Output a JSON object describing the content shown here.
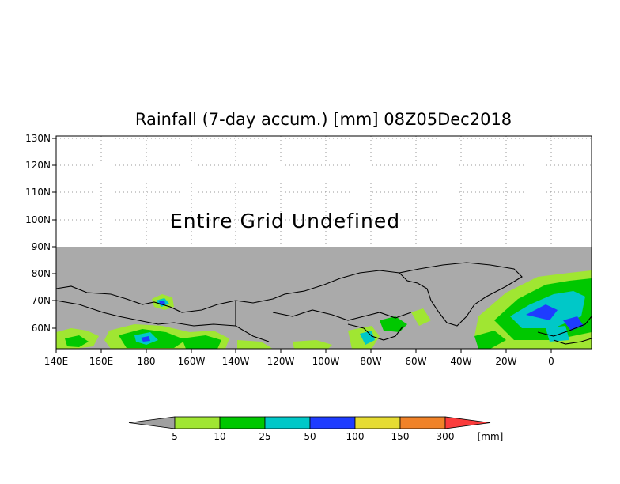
{
  "title": "Rainfall (7-day accum.) [mm] 08Z05Dec2018",
  "overlay_text": "Entire Grid Undefined",
  "lat_ticks": [
    "130N",
    "120N",
    "110N",
    "100N",
    "90N",
    "80N",
    "70N",
    "60N"
  ],
  "lon_ticks": [
    "140E",
    "160E",
    "180",
    "160W",
    "140W",
    "120W",
    "100W",
    "80W",
    "60W",
    "40W",
    "20W",
    "0"
  ],
  "colorbar": {
    "labels": [
      "5",
      "10",
      "25",
      "50",
      "100",
      "150",
      "300"
    ],
    "unit": "[mm]",
    "colors": {
      "below": "#a0a0a0",
      "bins": [
        "#a0e632",
        "#00c800",
        "#00c8c8",
        "#1e3cff",
        "#e6dc32",
        "#f08228"
      ],
      "above": "#fa3c3c"
    }
  },
  "map_colors": {
    "undefined": "#aaaaaa",
    "coast": "#000000",
    "light_green": "#a0e632",
    "green": "#00c800",
    "cyan": "#00c8c8",
    "blue": "#1e3cff"
  }
}
